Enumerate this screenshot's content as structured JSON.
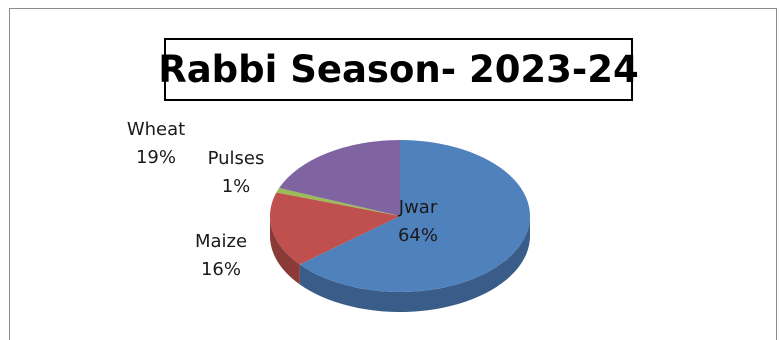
{
  "chart_data": {
    "type": "pie",
    "title": "Rabbi Season- 2023-24",
    "categories": [
      "Jwar",
      "Maize",
      "Pulses",
      "Wheat"
    ],
    "values": [
      64,
      16,
      1,
      19
    ],
    "labels": [
      {
        "name": "Jwar",
        "pct": "64%"
      },
      {
        "name": "Maize",
        "pct": "16%"
      },
      {
        "name": "Pulses",
        "pct": "1%"
      },
      {
        "name": "Wheat",
        "pct": "19%"
      }
    ],
    "colors": [
      "#4f81bd",
      "#c0504d",
      "#9bbb59",
      "#8064a2"
    ],
    "style": "3d-pie",
    "legend": "none"
  }
}
